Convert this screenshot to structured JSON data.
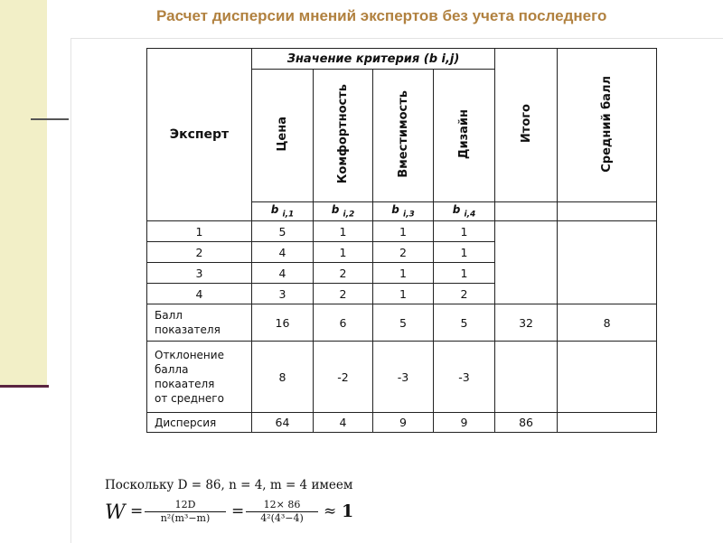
{
  "title": "Расчет дисперсии мнений экспертов без учета последнего",
  "table": {
    "expert_header": "Эксперт",
    "group_header": "Значение критерия (b i,j)",
    "criteria": [
      "Цена",
      "Комфортность",
      "Вместимость",
      "Дизайн"
    ],
    "total_header": "Итого",
    "avg_header": "Средний балл",
    "sub_headers": [
      {
        "b": "b",
        "idx": "i,1"
      },
      {
        "b": "b",
        "idx": "i,2"
      },
      {
        "b": "b",
        "idx": "i,3"
      },
      {
        "b": "b",
        "idx": "i,4"
      }
    ],
    "rows": [
      {
        "expert": "1",
        "values": [
          "5",
          "1",
          "1",
          "1"
        ]
      },
      {
        "expert": "2",
        "values": [
          "4",
          "1",
          "2",
          "1"
        ]
      },
      {
        "expert": "3",
        "values": [
          "4",
          "2",
          "1",
          "1"
        ]
      },
      {
        "expert": "4",
        "values": [
          "3",
          "2",
          "1",
          "2"
        ]
      }
    ],
    "score_row": {
      "label_line1": "Балл",
      "label_line2": "показателя",
      "values": [
        "16",
        "6",
        "5",
        "5"
      ],
      "total": "32",
      "avg": "8"
    },
    "deviation_row": {
      "label_lines": [
        "Отклонение",
        "балла",
        "покаателя",
        "от среднего"
      ],
      "values": [
        "8",
        "-2",
        "-3",
        "-3"
      ],
      "total": "",
      "avg": ""
    },
    "dispersion_row": {
      "label": "Дисперсия",
      "values": [
        "64",
        "4",
        "9",
        "9"
      ],
      "total": "86",
      "avg": ""
    }
  },
  "formula": {
    "line1": "Поскольку D = 86,   n = 4,   m = 4 имеем",
    "w": "W",
    "eq": "=",
    "frac1_num": "12D",
    "frac1_den": "n²(m³−m)",
    "frac2_num": "12× 86",
    "frac2_den": "4²(4³−4)",
    "approx": "≈",
    "result": "1"
  },
  "colors": {
    "title": "#b1813f",
    "sidebar": "#f2efc7",
    "sidebar_line": "#5a2440"
  }
}
